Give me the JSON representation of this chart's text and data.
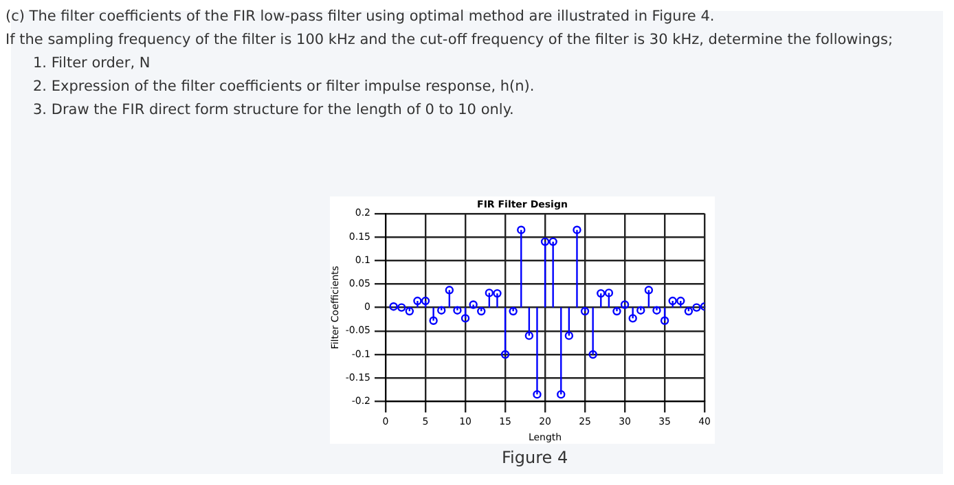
{
  "chart_data": {
    "type": "lollipop",
    "title": "FIR Filter Design",
    "xlabel": "Length",
    "ylabel": "Filter Coefficients",
    "annotations": [
      "(c) The filter coefficients of the FIR low-pass filter using optimal method are illustrated in Figure 4.",
      "If the sampling frequency of the filter is 100 kHz and the cut-off frequency of the filter is 30 kHz, determine the followings;",
      "1. Filter order, N",
      "2. Expression of the filter coefficients or filter impulse response, h(n).",
      "3. Draw the FIR direct form structure for the length of 0 to 10 only.",
      "Figure 4"
    ],
    "x": [
      1,
      2,
      3,
      4,
      5,
      6,
      7,
      8,
      9,
      10,
      11,
      12,
      13,
      14,
      15,
      16,
      17,
      18,
      19,
      20,
      21,
      22,
      23,
      24,
      25,
      26,
      27,
      28,
      29,
      30,
      31,
      32,
      33,
      34,
      35,
      36,
      37,
      38,
      39,
      40
    ],
    "series": [
      {
        "color": "#0000ff",
        "values": [
          0.002,
          0,
          -0.008,
          0.014,
          0.014,
          -0.028,
          -0.006,
          0.037,
          -0.006,
          -0.023,
          0.006,
          -0.008,
          0.031,
          0.03,
          -0.1,
          -0.008,
          0.165,
          -0.06,
          -0.185,
          0.14,
          0.14,
          -0.185,
          -0.06,
          0.165,
          -0.008,
          -0.1,
          0.03,
          0.031,
          -0.008,
          0.006,
          -0.023,
          -0.006,
          0.037,
          -0.006,
          -0.028,
          0.014,
          0.014,
          -0.008,
          0,
          0.002
        ]
      }
    ],
    "xlim": [
      0,
      40
    ],
    "xticks": [
      0,
      5,
      10,
      15,
      20,
      25,
      30,
      35,
      40
    ],
    "ylim": [
      -0.2,
      0.2
    ],
    "yticks": [
      -0.2,
      -0.15,
      -0.1,
      -0.05,
      0,
      0.05,
      0.1,
      0.15,
      0.2
    ],
    "grid": true,
    "marker": "circle",
    "legend": false
  }
}
